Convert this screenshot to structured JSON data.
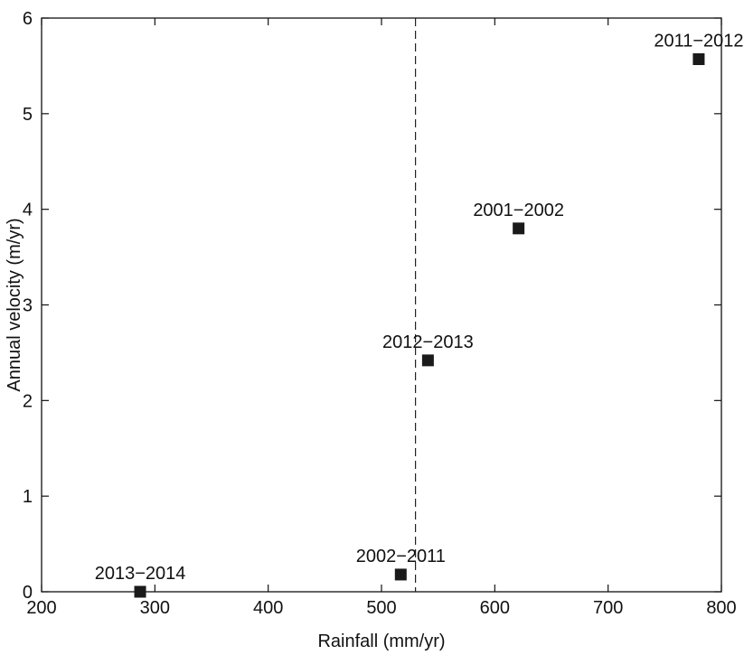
{
  "chart_data": {
    "type": "scatter",
    "xlabel": "Rainfall (mm/yr)",
    "ylabel": "Annual velocity (m/yr)",
    "xlim": [
      200,
      800
    ],
    "ylim": [
      0,
      6
    ],
    "xticks": [
      200,
      300,
      400,
      500,
      600,
      700,
      800
    ],
    "yticks": [
      0,
      1,
      2,
      3,
      4,
      5,
      6
    ],
    "xtick_labels": [
      "200",
      "300",
      "400",
      "500",
      "600",
      "700",
      "800"
    ],
    "ytick_labels": [
      "0",
      "1",
      "2",
      "3",
      "4",
      "5",
      "6"
    ],
    "grid": false,
    "marker": "square",
    "marker_color": "#1a1a1a",
    "points": [
      {
        "label": "2013−2014",
        "x": 287,
        "y": 0.0
      },
      {
        "label": "2002−2011",
        "x": 517,
        "y": 0.18
      },
      {
        "label": "2012−2013",
        "x": 541,
        "y": 2.42
      },
      {
        "label": "2001−2002",
        "x": 621,
        "y": 3.8
      },
      {
        "label": "2011−2012",
        "x": 780,
        "y": 5.57
      }
    ],
    "reference_line": {
      "orientation": "vertical",
      "x": 530,
      "style": "dashed"
    }
  }
}
